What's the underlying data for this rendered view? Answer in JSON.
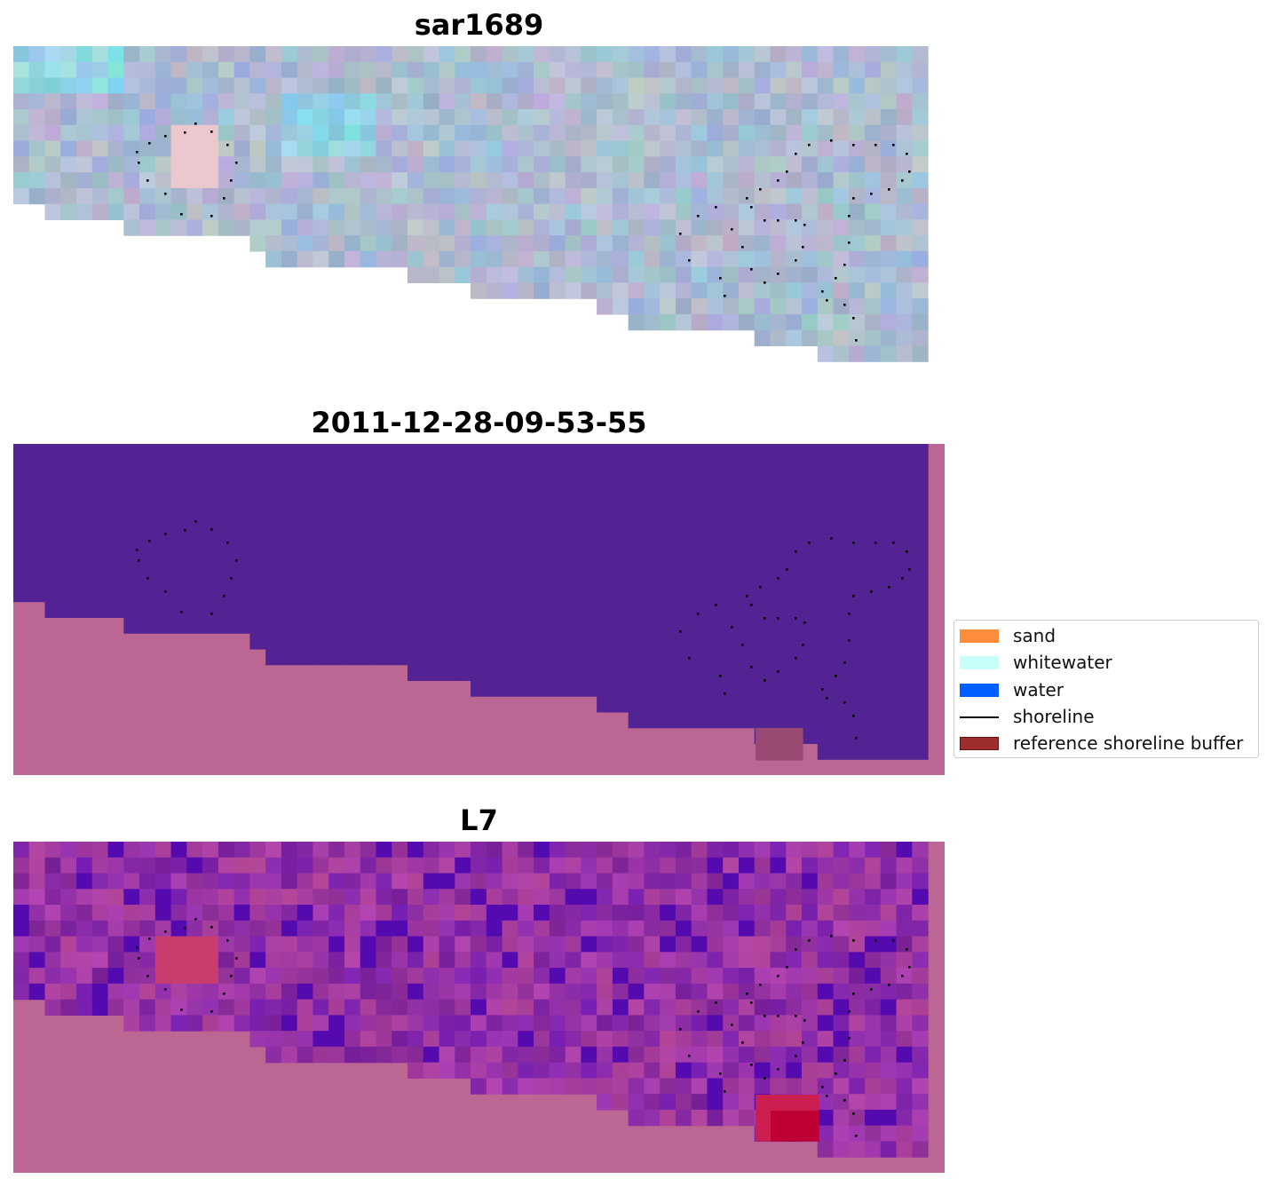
{
  "panels": [
    {
      "title": "sar1689",
      "style": "sar"
    },
    {
      "title": "2011-12-28-09-53-55",
      "style": "classified"
    },
    {
      "title": "L7",
      "style": "index"
    }
  ],
  "colors": {
    "land": "#bb6693",
    "water_class": "#532394",
    "buffer_overlay": "#9a4a72"
  },
  "legend": {
    "items": [
      {
        "label": "sand",
        "color": "#ff8c3a",
        "kind": "patch"
      },
      {
        "label": "whitewater",
        "color": "#c8fffb",
        "kind": "patch"
      },
      {
        "label": "water",
        "color": "#0060ff",
        "kind": "patch"
      },
      {
        "label": "shoreline",
        "color": "#000000",
        "kind": "line"
      },
      {
        "label": "reference shoreline buffer",
        "color": "#9e2e2e",
        "kind": "patch"
      }
    ]
  }
}
